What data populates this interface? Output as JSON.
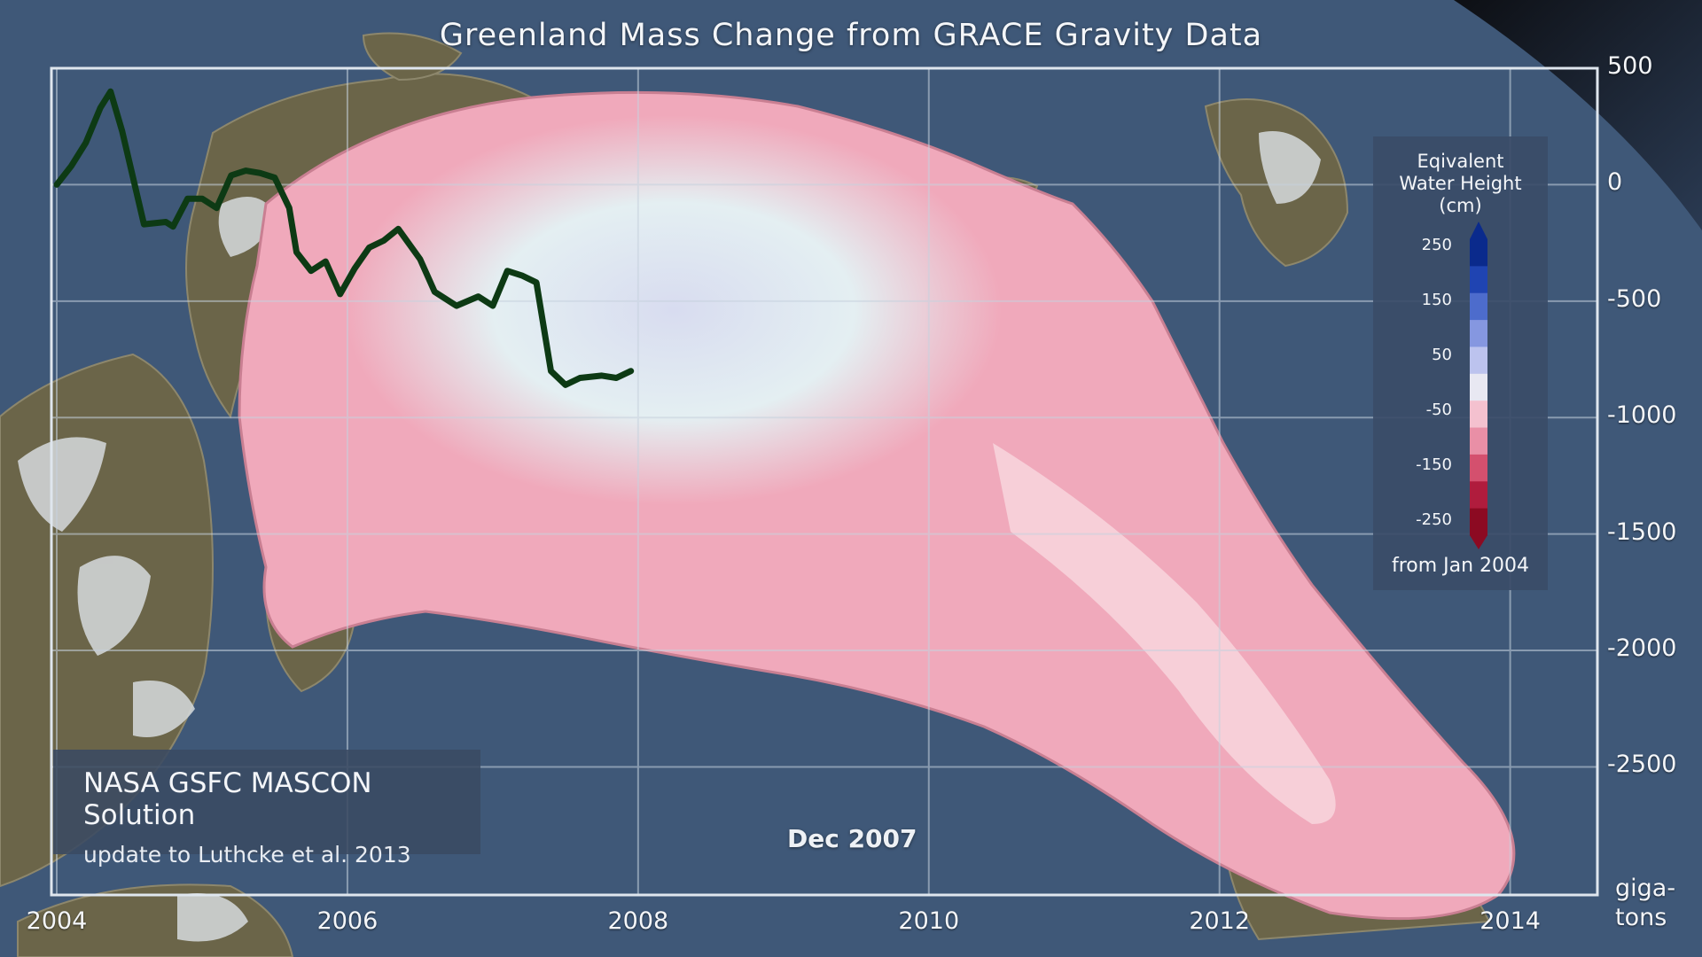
{
  "title": "Greenland Mass Change from GRACE Gravity Data",
  "date_label": "Dec 2007",
  "credit": {
    "main": "NASA GSFC MASCON Solution",
    "sub": "update to Luthcke et al. 2013"
  },
  "y_unit": [
    "giga-",
    "tons"
  ],
  "legend": {
    "title_lines": [
      "Eqivalent",
      "Water Height",
      "(cm)"
    ],
    "ticks": [
      "250",
      "150",
      "50",
      "-50",
      "-150",
      "-250"
    ],
    "footer": "from Jan 2004",
    "colors": [
      "#0a2a8c",
      "#1f44b2",
      "#4d6ccc",
      "#8597e0",
      "#bcc3ee",
      "#e8e8f2",
      "#f4c1cf",
      "#e98fa6",
      "#d4506e",
      "#b01c3d",
      "#8c0a22"
    ]
  },
  "colors": {
    "line": "#0d3a14",
    "ocean": "#3f5878",
    "ice_loss": "#f0a9bb",
    "ice_neutral": "#dde9ec",
    "grid": "#c7d2de"
  },
  "chart_data": {
    "type": "line",
    "title": "Greenland Mass Change from GRACE Gravity Data",
    "xlabel": "",
    "ylabel": "gigatons",
    "xlim": [
      2004,
      2014.6
    ],
    "ylim": [
      -3050,
      500
    ],
    "x_ticks": [
      "2004",
      "2006",
      "2008",
      "2010",
      "2012",
      "2014"
    ],
    "y_ticks": [
      "500",
      "0",
      "-500",
      "-1000",
      "-1500",
      "-2000",
      "-2500"
    ],
    "grid": true,
    "series": [
      {
        "x": [
          2004.0,
          2004.1,
          2004.2,
          2004.3,
          2004.37,
          2004.45,
          2004.6,
          2004.75,
          2004.8,
          2004.9,
          2005.0,
          2005.1,
          2005.2,
          2005.3,
          2005.4,
          2005.5,
          2005.6,
          2005.65,
          2005.75,
          2005.85,
          2005.95,
          2006.05,
          2006.15,
          2006.25,
          2006.35,
          2006.5,
          2006.6,
          2006.75,
          2006.9,
          2007.0,
          2007.1,
          2007.2,
          2007.3,
          2007.4,
          2007.5,
          2007.6,
          2007.75,
          2007.85,
          2007.95
        ],
        "y": [
          0,
          80,
          180,
          330,
          400,
          230,
          -170,
          -160,
          -180,
          -60,
          -60,
          -100,
          40,
          60,
          50,
          30,
          -100,
          -290,
          -370,
          -330,
          -470,
          -360,
          -270,
          -240,
          -190,
          -320,
          -460,
          -520,
          -480,
          -520,
          -370,
          -390,
          -420,
          -800,
          -860,
          -830,
          -820,
          -830,
          -800
        ]
      }
    ]
  }
}
